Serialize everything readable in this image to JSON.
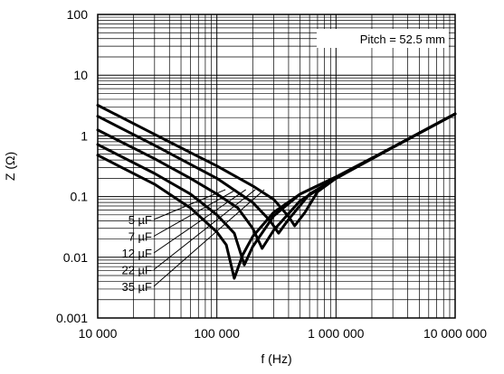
{
  "chart_data": {
    "type": "line",
    "title": "",
    "xlabel": "f (Hz)",
    "ylabel": "Z (Ω)",
    "xscale": "log",
    "yscale": "log",
    "xlim": [
      10000,
      10000000
    ],
    "ylim": [
      0.001,
      100
    ],
    "x_tick_values": [
      10000,
      100000,
      1000000,
      10000000
    ],
    "x_tick_labels": [
      "10 000",
      "100 000",
      "1 000 000",
      "10 000 000"
    ],
    "y_tick_values": [
      100,
      10,
      1,
      0.1,
      0.01,
      0.001
    ],
    "y_tick_labels": [
      "100",
      "10",
      "1",
      "0.1",
      "0.01",
      "0.001"
    ],
    "grid": true,
    "annotation": "Pitch = 52.5 mm",
    "series": [
      {
        "name": "5 µF",
        "points": [
          [
            10000,
            0.48
          ],
          [
            30000,
            0.16
          ],
          [
            60000,
            0.065
          ],
          [
            100000,
            0.026
          ],
          [
            120000,
            0.016
          ],
          [
            140000,
            0.0045
          ],
          [
            165000,
            0.011
          ],
          [
            200000,
            0.022
          ],
          [
            300000,
            0.055
          ],
          [
            500000,
            0.11
          ],
          [
            1000000,
            0.21
          ],
          [
            3000000,
            0.65
          ],
          [
            10000000,
            2.3
          ]
        ]
      },
      {
        "name": "7 µF",
        "points": [
          [
            10000,
            0.72
          ],
          [
            30000,
            0.24
          ],
          [
            60000,
            0.11
          ],
          [
            100000,
            0.05
          ],
          [
            140000,
            0.025
          ],
          [
            170000,
            0.0075
          ],
          [
            200000,
            0.015
          ],
          [
            300000,
            0.048
          ],
          [
            500000,
            0.11
          ],
          [
            1000000,
            0.21
          ],
          [
            3000000,
            0.65
          ],
          [
            10000000,
            2.3
          ]
        ]
      },
      {
        "name": "12 µF",
        "points": [
          [
            10000,
            1.25
          ],
          [
            30000,
            0.42
          ],
          [
            60000,
            0.2
          ],
          [
            100000,
            0.11
          ],
          [
            150000,
            0.065
          ],
          [
            200000,
            0.03
          ],
          [
            240000,
            0.014
          ],
          [
            300000,
            0.028
          ],
          [
            500000,
            0.085
          ],
          [
            1000000,
            0.2
          ],
          [
            3000000,
            0.65
          ],
          [
            10000000,
            2.3
          ]
        ]
      },
      {
        "name": "22 µF",
        "points": [
          [
            10000,
            2.1
          ],
          [
            30000,
            0.7
          ],
          [
            60000,
            0.34
          ],
          [
            100000,
            0.2
          ],
          [
            200000,
            0.08
          ],
          [
            280000,
            0.04
          ],
          [
            330000,
            0.025
          ],
          [
            400000,
            0.042
          ],
          [
            600000,
            0.11
          ],
          [
            1000000,
            0.2
          ],
          [
            3000000,
            0.65
          ],
          [
            10000000,
            2.3
          ]
        ]
      },
      {
        "name": "35 µF",
        "points": [
          [
            10000,
            3.2
          ],
          [
            30000,
            1.06
          ],
          [
            60000,
            0.53
          ],
          [
            100000,
            0.32
          ],
          [
            200000,
            0.15
          ],
          [
            300000,
            0.09
          ],
          [
            400000,
            0.047
          ],
          [
            450000,
            0.033
          ],
          [
            550000,
            0.055
          ],
          [
            700000,
            0.12
          ],
          [
            1000000,
            0.2
          ],
          [
            3000000,
            0.65
          ],
          [
            10000000,
            2.3
          ]
        ]
      }
    ],
    "label_order_top_to_bottom": [
      "5 µF",
      "7 µF",
      "12 µF",
      "22 µF",
      "35 µF"
    ]
  }
}
